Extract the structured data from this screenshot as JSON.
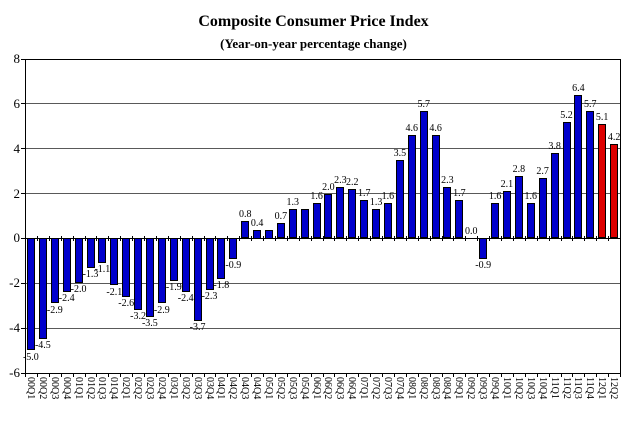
{
  "chart_data": {
    "type": "bar",
    "title": "Composite Consumer Price Index",
    "subtitle": "(Year-on-year percentage change)",
    "xlabel": "",
    "ylabel": "",
    "ylim": [
      -6,
      8
    ],
    "yticks": [
      8,
      6,
      4,
      2,
      0,
      -2,
      -4,
      -6
    ],
    "ytick_labels": [
      "8",
      "6",
      "4",
      "2",
      "0",
      "-2",
      "-4",
      "-6"
    ],
    "grid": true,
    "legend": "none",
    "bar_color": "#0000CC",
    "highlight_color": "#DD0000",
    "highlight_indices": [
      48,
      49
    ],
    "axis_color": "#000000",
    "gridline_color": "#595959",
    "categories": [
      "00Q1",
      "00Q2",
      "00Q3",
      "00Q4",
      "01Q1",
      "01Q2",
      "01Q3",
      "01Q4",
      "02Q1",
      "02Q2",
      "02Q3",
      "02Q4",
      "03Q1",
      "03Q2",
      "03Q3",
      "03Q4",
      "04Q1",
      "04Q2",
      "04Q3",
      "04Q4",
      "05Q1",
      "05Q2",
      "05Q3",
      "05Q4",
      "06Q1",
      "06Q2",
      "06Q3",
      "06Q4",
      "07Q1",
      "07Q2",
      "07Q3",
      "07Q4",
      "08Q1",
      "08Q2",
      "08Q3",
      "08Q4",
      "09Q1",
      "09Q2",
      "09Q3",
      "09Q4",
      "10Q1",
      "10Q2",
      "10Q3",
      "10Q4",
      "11Q1",
      "11Q2",
      "11Q3",
      "11Q4",
      "12Q1",
      "12Q2"
    ],
    "values": [
      -5.0,
      -4.5,
      -2.9,
      -2.4,
      -2.0,
      -1.3,
      -1.1,
      -2.1,
      -2.6,
      -3.2,
      -3.5,
      -2.9,
      -1.9,
      -2.4,
      -3.7,
      -2.3,
      -1.8,
      -0.9,
      0.8,
      0.4,
      0.4,
      0.7,
      1.3,
      1.3,
      1.6,
      2.0,
      2.3,
      2.2,
      1.7,
      1.3,
      1.6,
      3.5,
      4.6,
      5.7,
      4.6,
      2.3,
      1.7,
      0.0,
      -0.9,
      1.6,
      2.1,
      2.8,
      1.6,
      2.7,
      3.8,
      5.2,
      6.4,
      5.7,
      5.1,
      4.2
    ],
    "bar_labels": [
      "-5.0",
      "-4.5",
      "-2.9",
      "-2.4",
      "-2.0",
      "-1.3",
      "-1.1",
      "-2.1",
      "-2.6",
      "-3.2",
      "-3.5",
      "-2.9",
      "-1.9",
      "-2.4",
      "-3.7",
      "-2.3",
      "-1.8",
      "-0.9",
      "0.8",
      "0.4",
      "",
      "0.7",
      "1.3",
      "",
      "1.6",
      "2.0",
      "2.3",
      "2.2",
      "1.7",
      "1.3",
      "1.6",
      "3.5",
      "4.6",
      "5.7",
      "4.6",
      "2.3",
      "1.7",
      "0.0",
      "-0.9",
      "1.6",
      "2.1",
      "2.8",
      "1.6",
      "2.7",
      "3.8",
      "5.2",
      "6.4",
      "5.7",
      "5.1",
      "4.2"
    ]
  }
}
